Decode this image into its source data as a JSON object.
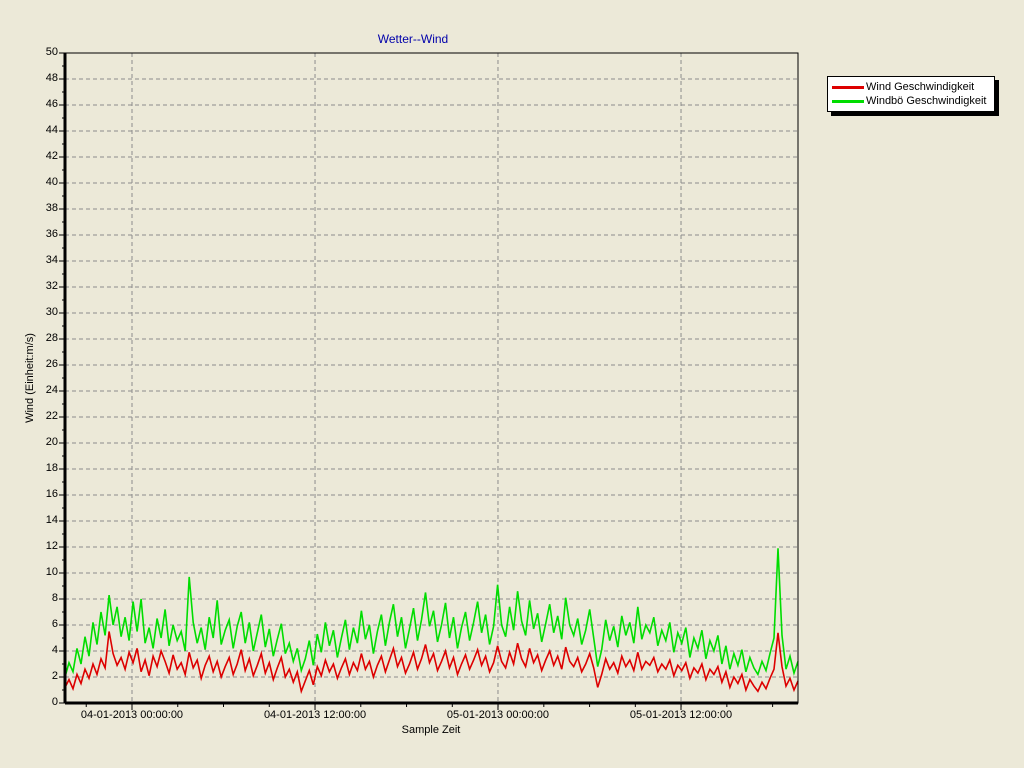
{
  "title": "Wetter--Wind",
  "colors": {
    "background": "#ECE9D8",
    "grid": "#8C8C8C",
    "axis": "#000000",
    "title": "#0000AA",
    "wind": "#DD0000",
    "gust": "#00DD00",
    "legend_bg": "#FFFFFF"
  },
  "legend": {
    "items": [
      {
        "label": "Wind Geschwindigkeit",
        "color": "#DD0000"
      },
      {
        "label": "Windbö Geschwindigkeit",
        "color": "#00DD00"
      }
    ]
  },
  "chart_data": {
    "type": "line",
    "title": "Wetter--Wind",
    "xlabel": "Sample Zeit",
    "ylabel": "Wind (Einheit:m/s)",
    "grid": "dashed, horizontal every 2 units, vertical at every major time tick",
    "legend_position": "top-right outside plot",
    "y_axis": {
      "min": 0,
      "max": 50,
      "major_step": 2,
      "minor_step": 1
    },
    "x_axis": {
      "start": "03-01-2013 19:35:00",
      "end": "05-01-2013 19:40:00",
      "minor_per_major": 4,
      "ticks": [
        {
          "label": "04-01-2013 00:00:00",
          "f": 0.0914
        },
        {
          "label": "04-01-2013 12:00:00",
          "f": 0.3411
        },
        {
          "label": "05-01-2013 00:00:00",
          "f": 0.5907
        },
        {
          "label": "05-01-2013 12:00:00",
          "f": 0.8404
        }
      ]
    },
    "series": [
      {
        "name": "Wind Geschwindigkeit",
        "color": "#DD0000",
        "values": [
          1.2,
          1.8,
          1.1,
          2.2,
          1.5,
          2.6,
          1.9,
          3.0,
          2.2,
          3.4,
          2.7,
          5.5,
          3.8,
          2.9,
          3.5,
          2.6,
          3.9,
          3.1,
          4.2,
          2.4,
          3.3,
          2.1,
          3.6,
          2.8,
          4.0,
          3.2,
          2.3,
          3.7,
          2.6,
          3.1,
          2.2,
          3.9,
          2.7,
          3.3,
          1.9,
          2.9,
          3.6,
          2.4,
          3.2,
          2.0,
          2.8,
          3.5,
          2.2,
          3.0,
          4.1,
          2.5,
          3.4,
          2.1,
          2.9,
          3.8,
          2.3,
          3.1,
          1.8,
          2.7,
          3.5,
          2.0,
          2.6,
          1.6,
          2.4,
          0.9,
          1.7,
          2.5,
          1.4,
          2.8,
          2.1,
          3.3,
          2.4,
          3.0,
          1.9,
          2.7,
          3.4,
          2.2,
          3.1,
          2.5,
          3.8,
          2.6,
          3.2,
          2.0,
          2.9,
          3.6,
          2.4,
          3.3,
          4.2,
          2.8,
          3.5,
          2.3,
          3.0,
          3.9,
          2.6,
          3.4,
          4.5,
          3.1,
          3.8,
          2.5,
          3.2,
          4.0,
          2.7,
          3.5,
          2.2,
          3.0,
          3.7,
          2.6,
          3.3,
          4.1,
          2.9,
          3.6,
          2.4,
          3.1,
          4.4,
          3.2,
          2.7,
          3.9,
          3.0,
          4.6,
          3.4,
          2.8,
          4.2,
          3.1,
          3.7,
          2.5,
          3.3,
          4.0,
          2.9,
          3.6,
          2.6,
          4.3,
          3.2,
          2.8,
          3.5,
          2.4,
          3.0,
          3.8,
          2.7,
          1.2,
          2.2,
          3.4,
          2.6,
          3.1,
          2.3,
          3.6,
          2.8,
          3.3,
          2.5,
          3.9,
          2.6,
          3.2,
          2.9,
          3.5,
          2.4,
          3.0,
          2.6,
          3.3,
          2.1,
          2.9,
          2.5,
          3.1,
          1.9,
          2.7,
          2.3,
          3.0,
          1.8,
          2.6,
          2.2,
          2.8,
          1.6,
          2.4,
          1.2,
          2.0,
          1.5,
          2.2,
          1.0,
          1.8,
          1.3,
          0.9,
          1.6,
          1.1,
          1.9,
          2.6,
          5.4,
          2.8,
          1.3,
          1.9,
          1.0,
          1.7
        ]
      },
      {
        "name": "Windbö Geschwindigkeit",
        "color": "#00DD00",
        "values": [
          2.0,
          3.1,
          2.4,
          4.2,
          3.0,
          5.1,
          3.6,
          6.2,
          4.5,
          7.0,
          5.2,
          8.3,
          6.0,
          7.4,
          5.1,
          6.6,
          4.8,
          7.8,
          5.5,
          8.0,
          4.6,
          5.8,
          4.2,
          6.5,
          5.0,
          7.2,
          4.4,
          6.0,
          4.8,
          5.5,
          4.0,
          9.7,
          6.2,
          4.6,
          5.8,
          4.1,
          6.6,
          5.0,
          7.9,
          4.5,
          5.6,
          6.4,
          4.2,
          5.9,
          7.0,
          4.6,
          6.2,
          4.0,
          5.4,
          6.8,
          4.3,
          5.7,
          3.6,
          4.9,
          6.1,
          3.8,
          4.6,
          3.2,
          4.2,
          2.5,
          3.4,
          4.8,
          2.9,
          5.3,
          3.9,
          6.2,
          4.4,
          5.6,
          3.5,
          5.0,
          6.4,
          4.1,
          5.8,
          4.6,
          7.1,
          4.9,
          6.0,
          3.8,
          5.5,
          6.8,
          4.4,
          6.2,
          7.6,
          5.1,
          6.6,
          4.2,
          5.7,
          7.3,
          4.8,
          6.4,
          8.5,
          5.9,
          7.1,
          4.7,
          6.0,
          7.7,
          5.0,
          6.6,
          4.2,
          5.8,
          7.0,
          4.8,
          6.2,
          7.8,
          5.4,
          6.8,
          4.5,
          5.9,
          9.1,
          6.0,
          5.1,
          7.4,
          5.6,
          8.6,
          6.3,
          5.2,
          7.9,
          5.7,
          6.9,
          4.7,
          6.1,
          7.6,
          5.4,
          6.7,
          4.9,
          8.1,
          6.0,
          5.2,
          6.5,
          4.5,
          5.6,
          7.2,
          5.0,
          2.8,
          4.1,
          6.4,
          4.8,
          5.9,
          4.3,
          6.7,
          5.2,
          6.2,
          4.6,
          7.4,
          4.9,
          6.0,
          5.4,
          6.6,
          4.4,
          5.6,
          4.8,
          6.2,
          3.9,
          5.4,
          4.6,
          5.8,
          3.5,
          5.0,
          4.2,
          5.6,
          3.4,
          4.8,
          4.0,
          5.2,
          3.0,
          4.4,
          2.6,
          3.8,
          2.9,
          4.1,
          2.4,
          3.5,
          2.7,
          2.2,
          3.2,
          2.5,
          3.8,
          5.0,
          11.9,
          5.2,
          2.6,
          3.6,
          2.3,
          3.2
        ]
      }
    ]
  }
}
